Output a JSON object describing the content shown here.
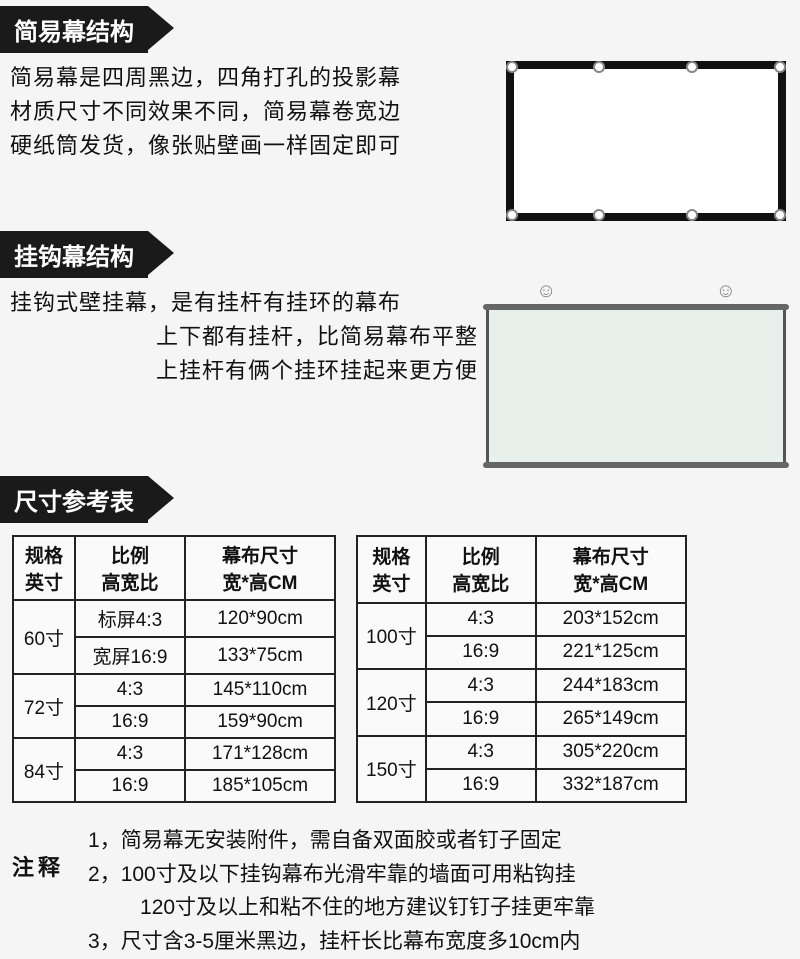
{
  "section1": {
    "title": "简易幕结构",
    "desc_l1": "简易幕是四周黑边，四角打孔的投影幕",
    "desc_l2": "材质尺寸不同效果不同，简易幕卷宽边",
    "desc_l3": "硬纸筒发货，像张贴壁画一样固定即可"
  },
  "section2": {
    "title": "挂钩幕结构",
    "desc_l1": "挂钩式壁挂幕，是有挂杆有挂环的幕布",
    "desc_l2": "上下都有挂杆，比简易幕布平整",
    "desc_l3": "上挂杆有俩个挂环挂起来更方便"
  },
  "section3": {
    "title": "尺寸参考表"
  },
  "table_headers": {
    "size": "规格\n英寸",
    "ratio": "比例\n高宽比",
    "dim": "幕布尺寸\n宽*高CM"
  },
  "table_left": [
    {
      "size": "60寸",
      "rows": [
        {
          "ratio": "标屏4:3",
          "dim": "120*90cm"
        },
        {
          "ratio": "宽屏16:9",
          "dim": "133*75cm"
        }
      ]
    },
    {
      "size": "72寸",
      "rows": [
        {
          "ratio": "4:3",
          "dim": "145*110cm"
        },
        {
          "ratio": "16:9",
          "dim": "159*90cm"
        }
      ]
    },
    {
      "size": "84寸",
      "rows": [
        {
          "ratio": "4:3",
          "dim": "171*128cm"
        },
        {
          "ratio": "16:9",
          "dim": "185*105cm"
        }
      ]
    }
  ],
  "table_right": [
    {
      "size": "100寸",
      "rows": [
        {
          "ratio": "4:3",
          "dim": "203*152cm"
        },
        {
          "ratio": "16:9",
          "dim": "221*125cm"
        }
      ]
    },
    {
      "size": "120寸",
      "rows": [
        {
          "ratio": "4:3",
          "dim": "244*183cm"
        },
        {
          "ratio": "16:9",
          "dim": "265*149cm"
        }
      ]
    },
    {
      "size": "150寸",
      "rows": [
        {
          "ratio": "4:3",
          "dim": "305*220cm"
        },
        {
          "ratio": "16:9",
          "dim": "332*187cm"
        }
      ]
    }
  ],
  "notes": {
    "label": "注释",
    "n1": "1，简易幕无安装附件，需自备双面胶或者钉子固定",
    "n2": "2，100寸及以下挂钩幕布光滑牢靠的墙面可用粘钩挂",
    "n2b": "120寸及以上和粘不住的地方建议钉钉子挂更牢靠",
    "n3": "3，尺寸含3-5厘米黑边，挂杆长比幕布宽度多10cm内"
  }
}
